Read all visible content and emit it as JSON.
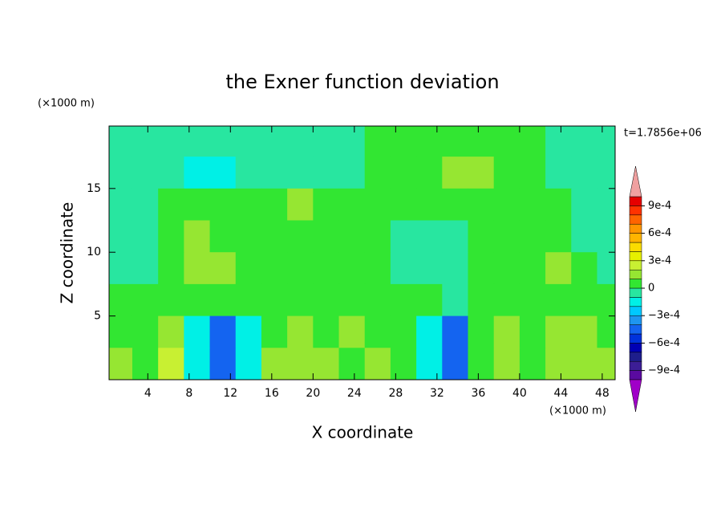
{
  "chart_data": {
    "type": "contour",
    "title": "the Exner function deviation",
    "xlabel": "X coordinate",
    "ylabel": "Z coordinate",
    "x_unit": "(×1000 m)",
    "y_unit": "(×1000 m)",
    "time_label": "t=1.7856e+06",
    "xlim": [
      0.25,
      49.25
    ],
    "ylim": [
      0,
      19.9
    ],
    "xticks": [
      4,
      8,
      12,
      16,
      20,
      24,
      28,
      32,
      36,
      40,
      44,
      48
    ],
    "yticks": [
      5,
      10,
      15
    ],
    "x": [
      1.25,
      3.75,
      6.25,
      8.75,
      11.25,
      13.75,
      16.25,
      18.75,
      21.25,
      23.75,
      26.25,
      28.75,
      31.25,
      33.75,
      36.25,
      38.75,
      41.25,
      43.75,
      46.25,
      48.75
    ],
    "y": [
      18.75,
      16.25,
      13.75,
      11.25,
      8.75,
      6.25,
      3.75,
      1.25
    ],
    "z": [
      [
        -5e-05,
        -5e-05,
        -5e-05,
        -5e-05,
        -5e-05,
        -5e-05,
        -5e-05,
        -5e-05,
        -5e-05,
        -5e-05,
        5e-05,
        5e-05,
        5e-05,
        5e-05,
        5e-05,
        5e-05,
        5e-05,
        -5e-05,
        -5e-05,
        -5e-05
      ],
      [
        -5e-05,
        -5e-05,
        -5e-05,
        -0.00015,
        -0.00015,
        -5e-05,
        -5e-05,
        -5e-05,
        -5e-05,
        -5e-05,
        5e-05,
        5e-05,
        5e-05,
        0.00015,
        0.00015,
        5e-05,
        5e-05,
        -5e-05,
        -5e-05,
        -5e-05
      ],
      [
        -5e-05,
        -5e-05,
        5e-05,
        5e-05,
        5e-05,
        5e-05,
        5e-05,
        0.00015,
        5e-05,
        5e-05,
        5e-05,
        5e-05,
        5e-05,
        5e-05,
        5e-05,
        5e-05,
        5e-05,
        5e-05,
        -5e-05,
        -5e-05
      ],
      [
        -5e-05,
        -5e-05,
        5e-05,
        0.00015,
        5e-05,
        5e-05,
        5e-05,
        5e-05,
        5e-05,
        5e-05,
        5e-05,
        -5e-05,
        -5e-05,
        -5e-05,
        5e-05,
        5e-05,
        5e-05,
        5e-05,
        -5e-05,
        -5e-05
      ],
      [
        -5e-05,
        -5e-05,
        5e-05,
        0.00015,
        0.00015,
        5e-05,
        5e-05,
        5e-05,
        5e-05,
        5e-05,
        5e-05,
        -5e-05,
        -5e-05,
        -5e-05,
        5e-05,
        5e-05,
        5e-05,
        0.00015,
        5e-05,
        -5e-05
      ],
      [
        5e-05,
        5e-05,
        5e-05,
        5e-05,
        5e-05,
        5e-05,
        5e-05,
        5e-05,
        5e-05,
        5e-05,
        5e-05,
        5e-05,
        5e-05,
        -5e-05,
        5e-05,
        5e-05,
        5e-05,
        5e-05,
        5e-05,
        5e-05
      ],
      [
        5e-05,
        5e-05,
        0.00015,
        -0.00015,
        -0.0005,
        -0.00015,
        5e-05,
        0.00015,
        5e-05,
        0.00015,
        5e-05,
        5e-05,
        -0.00015,
        -0.0005,
        5e-05,
        0.00015,
        5e-05,
        0.00015,
        0.00015,
        5e-05
      ],
      [
        0.00015,
        5e-05,
        0.00025,
        -0.00015,
        -0.0005,
        -0.00015,
        0.00015,
        0.00015,
        0.00015,
        5e-05,
        0.00015,
        5e-05,
        -0.00015,
        -0.0005,
        5e-05,
        0.00015,
        5e-05,
        0.00015,
        0.00015,
        0.00015
      ]
    ],
    "levels": [
      -0.001,
      -0.0009,
      -0.0008,
      -0.0007,
      -0.0006,
      -0.0005,
      -0.0004,
      -0.0003,
      -0.0002,
      -0.0001,
      0,
      0.0001,
      0.0002,
      0.0003,
      0.0004,
      0.0005,
      0.0006,
      0.0007,
      0.0008,
      0.0009,
      0.001
    ],
    "level_colors": [
      "#5a0aa0",
      "#3c1e96",
      "#1e1e8c",
      "#0000b4",
      "#0032dc",
      "#1464f0",
      "#1e96f0",
      "#00c8ff",
      "#00f0e6",
      "#28e6a0",
      "#32e632",
      "#96e632",
      "#c8f032",
      "#e6f000",
      "#fadc00",
      "#ffb400",
      "#ff9600",
      "#ff6400",
      "#ff3200",
      "#e60000"
    ],
    "over_color": "#f0a0a0",
    "under_color": "#a000c8",
    "cbar_ticks": [
      {
        "value": 0.0009,
        "label": "9e-4"
      },
      {
        "value": 0.0006,
        "label": "6e-4"
      },
      {
        "value": 0.0003,
        "label": "3e-4"
      },
      0,
      {
        "value": -0.0003,
        "label": "−3e-4"
      },
      {
        "value": -0.0006,
        "label": "−6e-4"
      },
      {
        "value": -0.0009,
        "label": "−9e-4"
      }
    ]
  }
}
